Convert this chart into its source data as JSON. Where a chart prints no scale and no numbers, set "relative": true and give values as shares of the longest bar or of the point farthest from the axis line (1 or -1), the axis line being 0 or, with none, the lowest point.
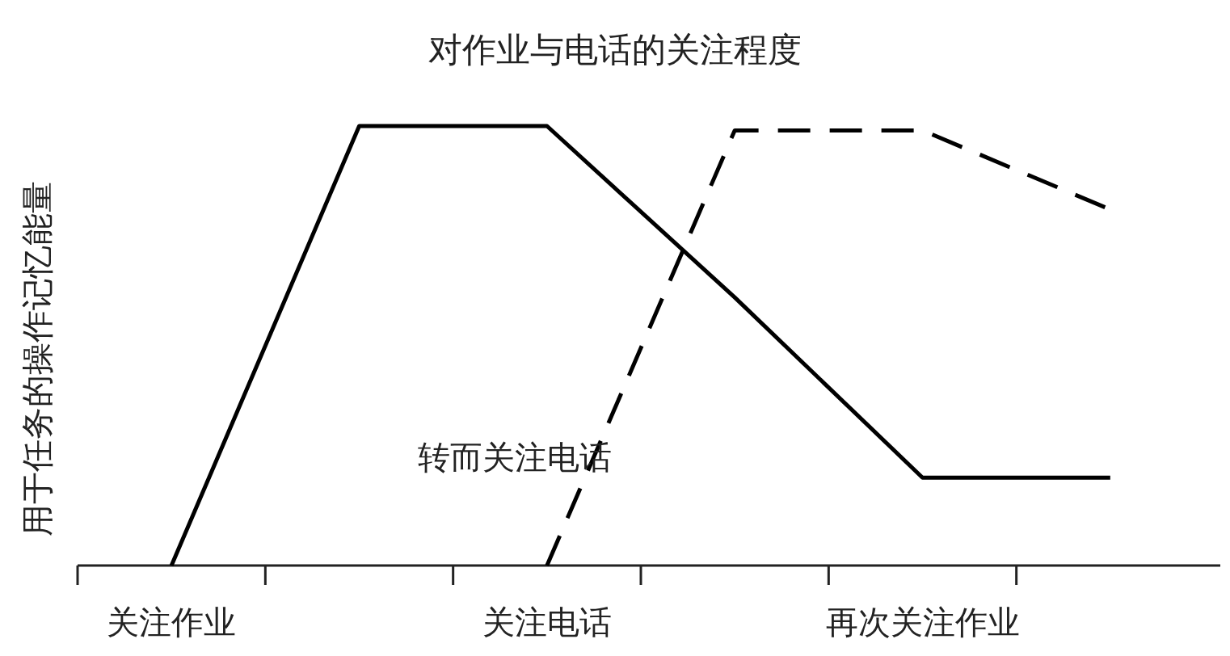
{
  "chart_data": {
    "type": "line",
    "title": "对作业与电话的关注程度",
    "ylabel": "用于任务的操作记忆能量",
    "relative": true,
    "categories": [
      "关注作业",
      null,
      "关注电话",
      null,
      "再次关注作业",
      null
    ],
    "series": [
      {
        "color": "#000000",
        "line_style": "solid",
        "values": [
          0,
          1,
          1,
          0.61,
          0.2,
          0.2
        ]
      },
      {
        "color": "#000000",
        "line_style": "dashed",
        "values": [
          null,
          null,
          0,
          0.99,
          0.99,
          0.81
        ]
      }
    ],
    "annotations": [
      "转而关注电话"
    ],
    "grid": false,
    "marker": "none"
  }
}
